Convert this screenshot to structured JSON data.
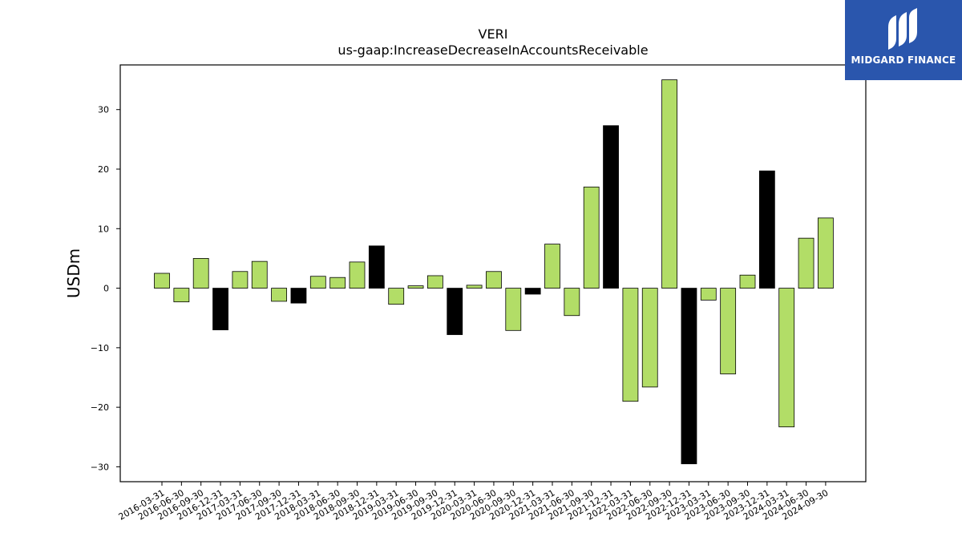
{
  "chart_data": {
    "type": "bar",
    "title": "VERI",
    "subtitle": "us-gaap:IncreaseDecreaseInAccountsReceivable",
    "xlabel": "",
    "ylabel": "USDm",
    "ylim": [
      -32.5,
      37.5
    ],
    "yticks": [
      -30,
      -20,
      -10,
      0,
      10,
      20,
      30
    ],
    "ytick_labels": [
      "−30",
      "−20",
      "−10",
      "0",
      "10",
      "20",
      "30"
    ],
    "grid": false,
    "colors": {
      "quarter": "#b2dd67",
      "year_end": "#000000",
      "edge": "#000000"
    },
    "categories": [
      "2016-03-31",
      "2016-06-30",
      "2016-09-30",
      "2016-12-31",
      "2017-03-31",
      "2017-06-30",
      "2017-09-30",
      "2017-12-31",
      "2018-03-31",
      "2018-06-30",
      "2018-09-30",
      "2018-12-31",
      "2019-03-31",
      "2019-06-30",
      "2019-09-30",
      "2019-12-31",
      "2020-03-31",
      "2020-06-30",
      "2020-09-30",
      "2020-12-31",
      "2021-03-31",
      "2021-06-30",
      "2021-09-30",
      "2021-12-31",
      "2022-03-31",
      "2022-06-30",
      "2022-09-30",
      "2022-12-31",
      "2023-03-31",
      "2023-06-30",
      "2023-09-30",
      "2023-12-31",
      "2024-03-31",
      "2024-06-30",
      "2024-09-30"
    ],
    "values": [
      2.5,
      -2.3,
      5.0,
      -7.0,
      2.8,
      4.5,
      -2.2,
      -2.5,
      2.0,
      1.8,
      4.4,
      7.1,
      -2.7,
      0.4,
      2.1,
      -7.8,
      0.5,
      2.8,
      -7.1,
      -1.0,
      7.4,
      -4.6,
      17.0,
      27.3,
      -19.0,
      -16.6,
      35.0,
      -29.5,
      -2.0,
      -14.4,
      2.2,
      19.7,
      -23.3,
      8.4,
      11.8
    ]
  },
  "logo": {
    "text": "MIDGARD FINANCE",
    "icon": "midgard-logo-mark",
    "background": "#2a56ad"
  }
}
